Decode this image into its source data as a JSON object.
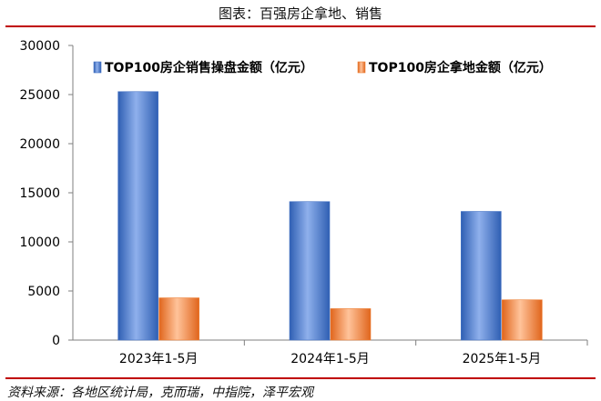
{
  "header": {
    "title": "图表：百强房企拿地、销售"
  },
  "footer": {
    "source": "资料来源：各地区统计局，克而瑞，中指院，泽平宏观"
  },
  "chart_data": {
    "type": "bar",
    "categories": [
      "2023年1-5月",
      "2024年1-5月",
      "2025年1-5月"
    ],
    "series": [
      {
        "name": "TOP100房企销售操盘金额（亿元）",
        "values": [
          25300,
          14100,
          13100
        ],
        "color": "#4472c4"
      },
      {
        "name": "TOP100房企拿地金额（亿元）",
        "values": [
          4300,
          3200,
          4100
        ],
        "color": "#ed7d31"
      }
    ],
    "ylim": [
      0,
      30000
    ],
    "yticks": [
      0,
      5000,
      10000,
      15000,
      20000,
      25000,
      30000
    ],
    "grid": false,
    "legend_position": "top"
  }
}
